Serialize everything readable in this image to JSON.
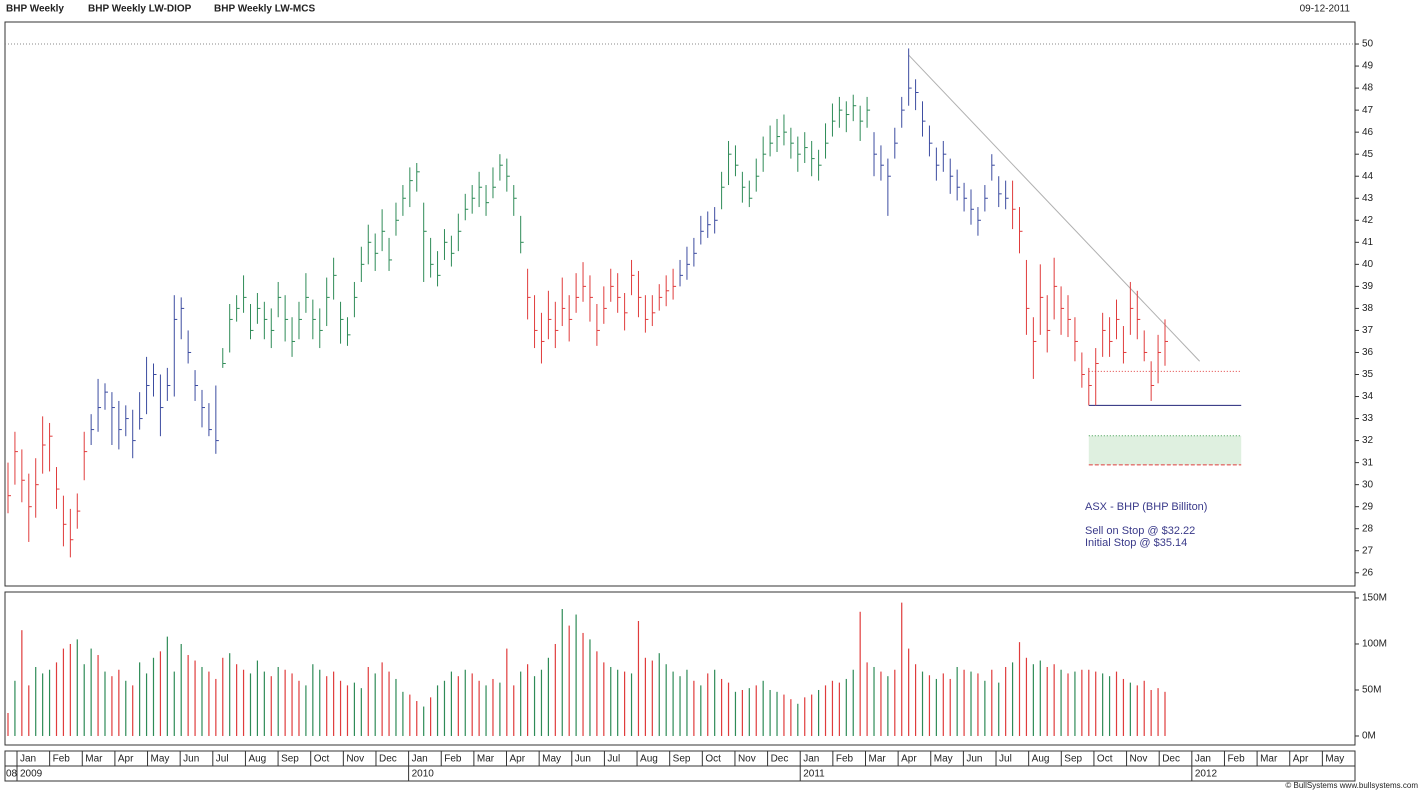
{
  "header": {
    "titles": [
      "BHP Weekly",
      "BHP Weekly LW-DIOP",
      "BHP Weekly LW-MCS"
    ],
    "date": "09-12-2011"
  },
  "chart_data": {
    "type": "ohlc",
    "ylim": [
      25.4,
      51
    ],
    "yticks": [
      26,
      27,
      28,
      29,
      30,
      31,
      32,
      33,
      34,
      35,
      36,
      37,
      38,
      39,
      40,
      41,
      42,
      43,
      44,
      45,
      46,
      47,
      48,
      49,
      50
    ],
    "series": [
      {
        "color": "#e03c3c",
        "bars": [
          [
            31,
            28.7,
            29.5
          ],
          [
            32.4,
            30,
            31.5
          ],
          [
            31.6,
            29.2,
            30.2
          ],
          [
            30.5,
            27.4,
            29
          ],
          [
            31.2,
            28.5,
            30
          ],
          [
            33.1,
            30.5,
            31.8
          ],
          [
            32.8,
            30.6,
            32.2
          ],
          [
            30.8,
            28.9,
            29.8
          ],
          [
            29.5,
            27.2,
            28.2
          ],
          [
            28.9,
            26.7,
            27.5
          ],
          [
            29.6,
            28,
            28.8
          ],
          [
            32.4,
            30.2,
            31.5
          ]
        ]
      },
      {
        "color": "#3c4ca0",
        "bars": [
          [
            33.2,
            31.8,
            32.5
          ],
          [
            34.8,
            32.4,
            33.5
          ],
          [
            34.6,
            33.4,
            34.2
          ],
          [
            34.2,
            31.8,
            33.5
          ],
          [
            33.8,
            31.6,
            32.5
          ],
          [
            33.6,
            32.2,
            33
          ],
          [
            33.4,
            31.2,
            32
          ],
          [
            34.2,
            32.5,
            33
          ],
          [
            35.8,
            33.2,
            34.5
          ],
          [
            35.5,
            34,
            35
          ],
          [
            35,
            32.2,
            33.5
          ],
          [
            35.3,
            33.8,
            34.5
          ],
          [
            38.6,
            34,
            37.5
          ],
          [
            38.5,
            36.6,
            38
          ],
          [
            37,
            35.5,
            36
          ],
          [
            35.2,
            33.8,
            34.5
          ],
          [
            34.3,
            32.6,
            33.5
          ],
          [
            33.7,
            32.2,
            32.5
          ],
          [
            34.5,
            31.4,
            32
          ]
        ]
      },
      {
        "color": "#2e8b57",
        "bars": [
          [
            36.2,
            35.3,
            35.5
          ],
          [
            38.2,
            36,
            37.5
          ],
          [
            38.6,
            37.4,
            38
          ],
          [
            39.5,
            37.8,
            38.5
          ],
          [
            38.2,
            36.6,
            37
          ],
          [
            38.7,
            37.3,
            38
          ],
          [
            38.3,
            36.6,
            37.5
          ],
          [
            38,
            36.2,
            37
          ],
          [
            39.2,
            37.6,
            38.5
          ],
          [
            38.6,
            36.5,
            37.5
          ],
          [
            37.6,
            35.8,
            36.5
          ],
          [
            38.3,
            36.6,
            37.5
          ],
          [
            39.6,
            37.8,
            38.5
          ],
          [
            38.4,
            36.6,
            37.5
          ],
          [
            38,
            36.2,
            37
          ],
          [
            39.4,
            37.2,
            38.5
          ],
          [
            40.3,
            38.4,
            39.5
          ],
          [
            38.3,
            36.4,
            37.5
          ],
          [
            37.6,
            36.3,
            36.8
          ],
          [
            39.2,
            37.6,
            38.5
          ],
          [
            40.8,
            39.2,
            40
          ],
          [
            41.8,
            40,
            41
          ],
          [
            41.4,
            39.7,
            40.5
          ],
          [
            42.5,
            40.6,
            41.5
          ],
          [
            41.2,
            39.7,
            40.2
          ],
          [
            42.8,
            41.3,
            42
          ],
          [
            43.6,
            42.2,
            43
          ],
          [
            44.4,
            42.6,
            43.8
          ],
          [
            44.6,
            43.3,
            44.2
          ],
          [
            42.8,
            39.2,
            41.5
          ],
          [
            41.2,
            39.4,
            40
          ],
          [
            40.6,
            39,
            39.5
          ],
          [
            41.6,
            40.2,
            41
          ],
          [
            41.3,
            39.9,
            40.5
          ],
          [
            42.3,
            40.6,
            41.5
          ],
          [
            43.2,
            42,
            42.5
          ],
          [
            43.6,
            42.3,
            43
          ],
          [
            44.2,
            42.6,
            43.5
          ],
          [
            43.6,
            42.2,
            42.8
          ],
          [
            44.4,
            43,
            43.5
          ],
          [
            45,
            43.8,
            44.5
          ],
          [
            44.8,
            43.3,
            44
          ],
          [
            43.6,
            42.2,
            43
          ],
          [
            42.2,
            40.5,
            41
          ]
        ]
      },
      {
        "color": "#e03c3c",
        "bars": [
          [
            39.8,
            37.5,
            38.5
          ],
          [
            38.6,
            36.2,
            37
          ],
          [
            37.8,
            35.5,
            36.5
          ],
          [
            38.8,
            36.6,
            37.5
          ],
          [
            38.3,
            36.2,
            37
          ],
          [
            39.4,
            37.2,
            38
          ],
          [
            38.6,
            36.5,
            37.5
          ],
          [
            39.6,
            37.8,
            38.5
          ],
          [
            40.1,
            38.3,
            39
          ],
          [
            39.5,
            37.4,
            38.5
          ],
          [
            38.2,
            36.3,
            37
          ],
          [
            39,
            37.3,
            38
          ],
          [
            39.8,
            38.3,
            39
          ],
          [
            39.6,
            37.8,
            38.5
          ],
          [
            38.7,
            37,
            37.8
          ],
          [
            40.2,
            38.6,
            39.5
          ],
          [
            39.7,
            37.6,
            38.5
          ],
          [
            38.6,
            36.9,
            37.5
          ],
          [
            38.6,
            37.2,
            37.8
          ],
          [
            39.1,
            37.9,
            38.5
          ],
          [
            39.5,
            38.1,
            38.8
          ],
          [
            39.8,
            38.4,
            39
          ]
        ]
      },
      {
        "color": "#3c4ca0",
        "bars": [
          [
            40.2,
            39,
            39.5
          ],
          [
            40.8,
            39.3,
            40
          ],
          [
            41.2,
            39.9,
            40.5
          ],
          [
            42.2,
            40.9,
            41.5
          ],
          [
            42.4,
            41.2,
            41.8
          ],
          [
            42.6,
            41.4,
            42
          ]
        ]
      },
      {
        "color": "#2e8b57",
        "bars": [
          [
            44.2,
            42.5,
            43.5
          ],
          [
            45.6,
            43.6,
            45
          ],
          [
            45.4,
            44,
            44.5
          ],
          [
            44.2,
            42.8,
            43.5
          ],
          [
            43.8,
            42.6,
            43
          ],
          [
            44.8,
            43.3,
            44
          ],
          [
            45.8,
            44.2,
            45
          ],
          [
            46.3,
            44.9,
            45.5
          ],
          [
            46.6,
            45.1,
            45.8
          ],
          [
            46.8,
            45.4,
            46
          ],
          [
            46.2,
            44.8,
            45.5
          ],
          [
            45.8,
            44.2,
            45
          ],
          [
            46,
            44.6,
            45.3
          ],
          [
            45.6,
            44,
            44.8
          ],
          [
            45.2,
            43.8,
            44.5
          ],
          [
            46.4,
            44.8,
            45.5
          ],
          [
            47.3,
            45.8,
            46.5
          ],
          [
            47.6,
            46.2,
            47
          ],
          [
            47.4,
            46,
            46.8
          ],
          [
            47.7,
            46.5,
            47.2
          ],
          [
            47.2,
            45.6,
            46.5
          ],
          [
            47.6,
            46.2,
            47
          ]
        ]
      },
      {
        "color": "#3c4ca0",
        "bars": [
          [
            46,
            44,
            45
          ],
          [
            45.4,
            43.8,
            44.5
          ],
          [
            44.8,
            42.2,
            44
          ],
          [
            46.2,
            44.8,
            45.5
          ],
          [
            47.6,
            46.2,
            47
          ],
          [
            49.8,
            47.2,
            48
          ],
          [
            48.4,
            47,
            47.8
          ],
          [
            47.4,
            45.8,
            46.5
          ],
          [
            46.3,
            44.9,
            45.5
          ],
          [
            45.3,
            43.8,
            44.5
          ],
          [
            45.6,
            44.2,
            45
          ],
          [
            44.8,
            43.2,
            44
          ],
          [
            44.3,
            42.9,
            43.5
          ],
          [
            43.7,
            42.4,
            43
          ],
          [
            43.4,
            41.8,
            42.5
          ],
          [
            42.6,
            41.3,
            42
          ],
          [
            43.6,
            42.4,
            43
          ],
          [
            45,
            43.8,
            44.5
          ],
          [
            44,
            42.6,
            43.2
          ],
          [
            43.8,
            42.5,
            43
          ]
        ]
      },
      {
        "color": "#e03c3c",
        "bars": [
          [
            43.8,
            41.6,
            42.5
          ],
          [
            42.6,
            40.5,
            41.5
          ],
          [
            40.2,
            36.8,
            38
          ],
          [
            37.6,
            34.8,
            36.5
          ],
          [
            40,
            36.8,
            38.5
          ],
          [
            38.6,
            36,
            37
          ],
          [
            40.3,
            37.5,
            39
          ],
          [
            39,
            36.8,
            38
          ],
          [
            38.6,
            36.7,
            37.5
          ],
          [
            37.6,
            35.6,
            36.5
          ],
          [
            36,
            34.4,
            35
          ],
          [
            35.3,
            33.6,
            34.5
          ],
          [
            36.2,
            33.6,
            35.5
          ],
          [
            37.8,
            35.8,
            37
          ],
          [
            37.6,
            35.8,
            36.5
          ],
          [
            38.4,
            36.6,
            37.5
          ],
          [
            37.2,
            35.5,
            36
          ],
          [
            39.2,
            36.8,
            38
          ],
          [
            38.8,
            36.6,
            37.5
          ],
          [
            37,
            35.6,
            36
          ],
          [
            35.6,
            33.8,
            34.5
          ],
          [
            36.8,
            34.6,
            36
          ],
          [
            37.5,
            35.4,
            36.5
          ]
        ]
      }
    ],
    "top_line": {
      "value": 50,
      "color": "#888888"
    },
    "trendline": {
      "from": [
        130,
        49.5
      ],
      "to": [
        172,
        35.6
      ],
      "color": "#b0b0b0"
    },
    "levels": [
      {
        "value": 35.14,
        "color": "#e03c3c",
        "dash": "1,2",
        "from_bar": 156,
        "to_bar": 178
      },
      {
        "value": 33.6,
        "color": "#22257a",
        "dash": "",
        "from_bar": 156,
        "to_bar": 178
      },
      {
        "value": 32.22,
        "color": "#3a9a4a",
        "dash": "1,2",
        "from_bar": 156,
        "to_bar": 178
      },
      {
        "value": 30.9,
        "color": "#e03c3c",
        "dash": "4,2",
        "from_bar": 156,
        "to_bar": 178
      }
    ],
    "zone": {
      "range": [
        30.9,
        32.22
      ],
      "color": "#dff0e0",
      "from_bar": 156,
      "to_bar": 178
    },
    "annotations": [
      "ASX - BHP (BHP Billiton)",
      "Sell on Stop @ $32.22",
      "Initial Stop @ $35.14"
    ],
    "volume": {
      "ylim": [
        -9.8,
        156.5
      ],
      "yticks": [
        {
          "value": 0,
          "label": "0M"
        },
        {
          "value": 50,
          "label": "50M"
        },
        {
          "value": 100,
          "label": "100M"
        },
        {
          "value": 150,
          "label": "150M"
        }
      ],
      "palette": {
        "g": "#2e8b57",
        "r": "#e03c3c"
      },
      "colors": "rgrrgggrrrgggrgrrgrgggrgggrrgrrrgrrgggrgrrrgggrrrrggrgrrggrrgrgggrgrrgrgrrgrgggrgrgrgrrggrgrrrgggggrgrgrrgrgrgggrrgrrgrrrggrrgrgrrrrgrgrrgrgrgrgrgrrggrrgrgrrrggrrgrrrrr",
      "values": [
        25,
        60,
        115,
        55,
        75,
        68,
        72,
        80,
        95,
        100,
        105,
        78,
        95,
        88,
        70,
        65,
        72,
        60,
        55,
        80,
        68,
        85,
        92,
        108,
        70,
        100,
        88,
        82,
        75,
        70,
        62,
        85,
        90,
        78,
        72,
        68,
        82,
        70,
        65,
        75,
        72,
        68,
        60,
        55,
        78,
        72,
        65,
        70,
        60,
        55,
        58,
        52,
        75,
        68,
        80,
        70,
        62,
        48,
        45,
        38,
        32,
        42,
        55,
        60,
        70,
        65,
        72,
        68,
        60,
        55,
        62,
        58,
        95,
        55,
        70,
        78,
        65,
        72,
        85,
        100,
        138,
        120,
        132,
        112,
        105,
        92,
        80,
        75,
        72,
        70,
        68,
        125,
        85,
        82,
        90,
        78,
        70,
        65,
        72,
        60,
        55,
        68,
        72,
        62,
        58,
        48,
        50,
        52,
        55,
        60,
        50,
        48,
        45,
        40,
        35,
        42,
        45,
        50,
        55,
        60,
        58,
        62,
        72,
        135,
        80,
        75,
        70,
        65,
        72,
        145,
        95,
        78,
        70,
        66,
        62,
        68,
        62,
        75,
        72,
        70,
        68,
        60,
        72,
        58,
        75,
        80,
        102,
        85,
        78,
        82,
        75,
        78,
        72,
        68,
        70,
        72,
        72,
        70,
        68,
        65,
        70,
        62,
        58,
        55,
        60,
        50,
        52,
        48
      ]
    },
    "time_axis": {
      "lead_year": "08",
      "months": [
        "Jan",
        "Feb",
        "Mar",
        "Apr",
        "May",
        "Jun",
        "Jul",
        "Aug",
        "Sep",
        "Oct",
        "Nov",
        "Dec",
        "Jan",
        "Feb",
        "Mar",
        "Apr",
        "May",
        "Jun",
        "Jul",
        "Aug",
        "Sep",
        "Oct",
        "Nov",
        "Dec",
        "Jan",
        "Feb",
        "Mar",
        "Apr",
        "May",
        "Jun",
        "Jul",
        "Aug",
        "Sep",
        "Oct",
        "Nov",
        "Dec",
        "Jan",
        "Feb",
        "Mar",
        "Apr",
        "May"
      ],
      "years": [
        "2009",
        "2010",
        "2011",
        "2012"
      ]
    }
  },
  "footer": "© BullSystems www.bullsystems.com"
}
